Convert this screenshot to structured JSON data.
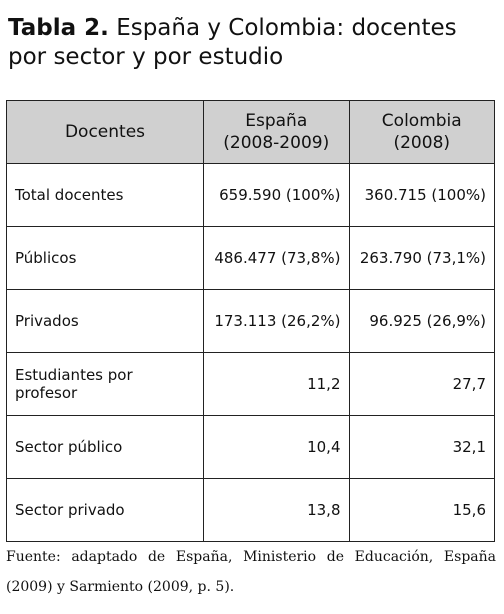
{
  "header": {
    "label": "Tabla 2.",
    "title": "España y Colombia: docentes por sector y por estudio"
  },
  "table": {
    "columns": [
      "Docentes",
      "España\n(2008-2009)",
      "Colombia\n(2008)"
    ],
    "rows": [
      [
        "Total docentes",
        "659.590 (100%)",
        "360.715 (100%)"
      ],
      [
        "Públicos",
        "486.477 (73,8%)",
        "263.790 (73,1%)"
      ],
      [
        "Privados",
        "173.113 (26,2%)",
        "96.925 (26,9%)"
      ],
      [
        "Estudiantes por profesor",
        "11,2",
        "27,7"
      ],
      [
        "Sector público",
        "10,4",
        "32,1"
      ],
      [
        "Sector privado",
        "13,8",
        "15,6"
      ]
    ]
  },
  "footer": {
    "source": "Fuente: adaptado de España, Ministerio de Educación, España (2009) y Sarmiento (2009, p. 5)."
  }
}
